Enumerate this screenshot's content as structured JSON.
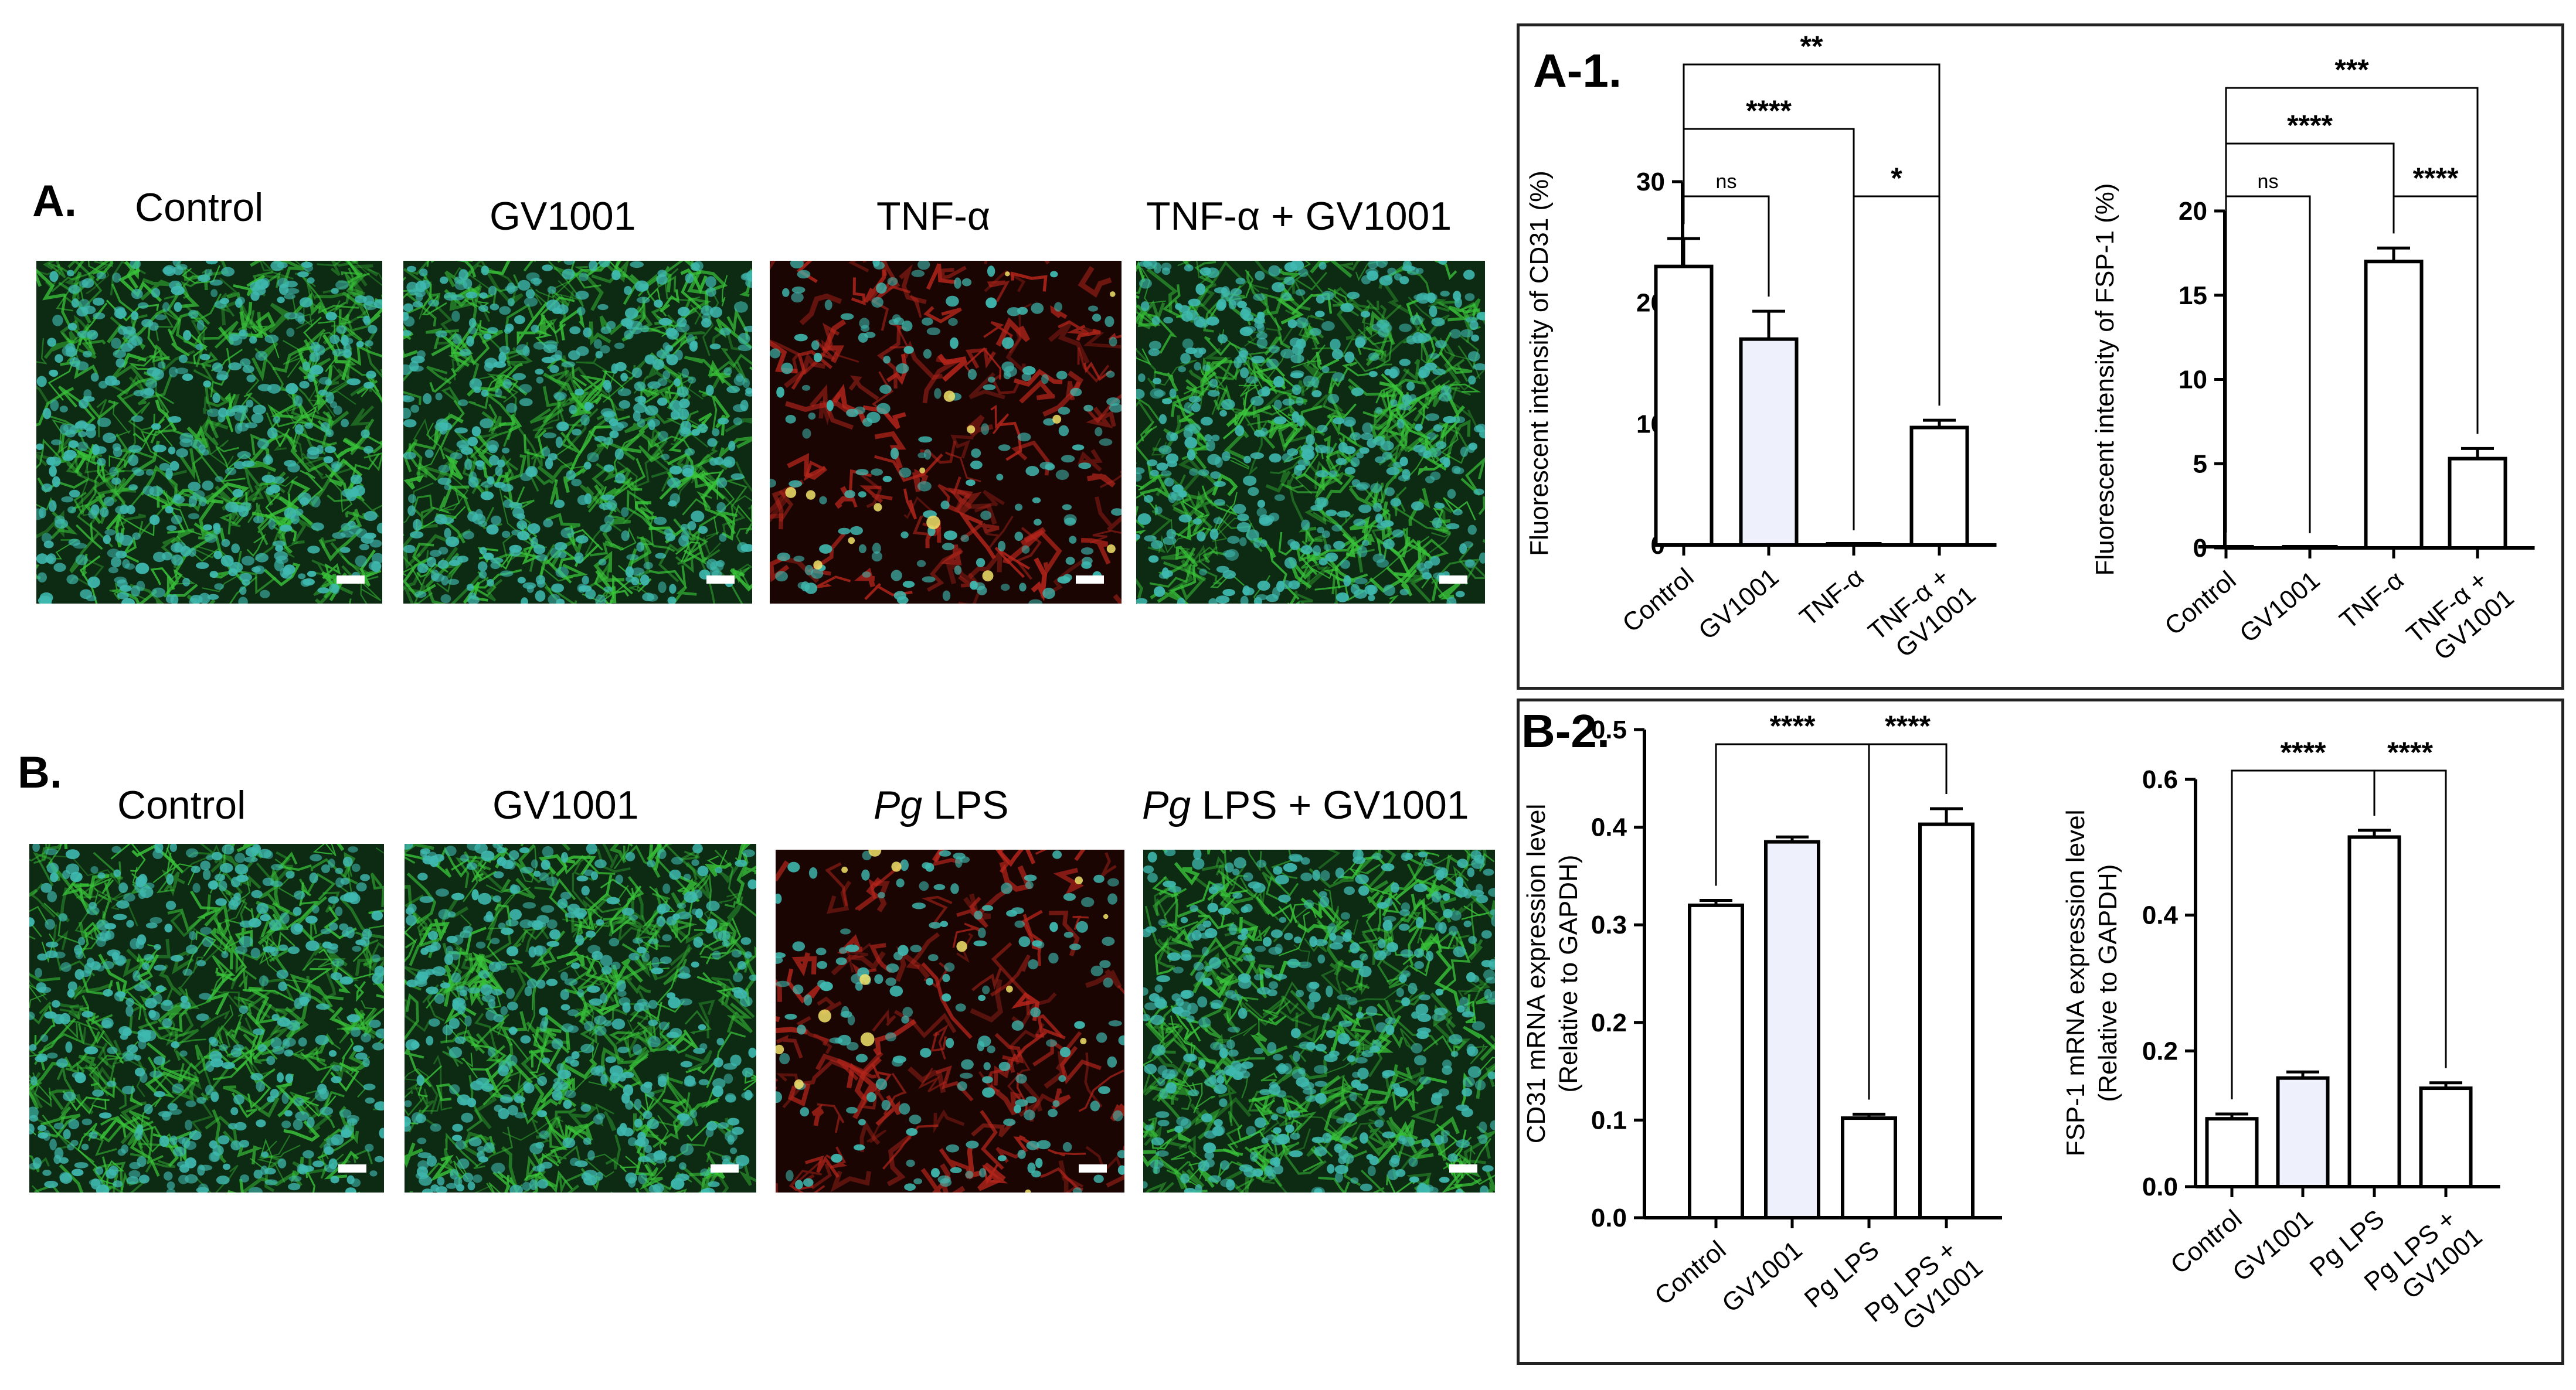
{
  "panels": {
    "A": {
      "letter": "A.",
      "labels": [
        "Control",
        "GV1001",
        "TNF-α",
        "TNF-α + GV1001"
      ],
      "image_descriptions": [
        "green-dense",
        "green-dense",
        "red-sparse",
        "green-dense"
      ]
    },
    "B": {
      "letter": "B.",
      "labels": [
        "Control",
        "GV1001",
        "Pg LPS",
        "Pg LPS + GV1001"
      ],
      "image_descriptions": [
        "green-dense",
        "green-dense",
        "red-sparse",
        "green-dense"
      ]
    }
  },
  "boxes": {
    "top_tag": "A-1.",
    "bottom_tag": "B-2."
  },
  "colors": {
    "cd31_green": "#39c43a",
    "nucleus_teal": "#3fb9b0",
    "fsp1_red": "#b8261c",
    "bar_fill_white": "#ffffff",
    "bar_fill_lavender": "#eef0fb"
  },
  "chart_data": [
    {
      "id": "cd31-fluor",
      "type": "bar",
      "categories": [
        "Control",
        "GV1001",
        "TNF-α",
        "TNF-α + GV1001"
      ],
      "values": [
        23.0,
        17.0,
        0,
        9.7
      ],
      "errors": [
        2.3,
        2.3,
        0,
        0.6
      ],
      "ylabel": "Fluorescent intensity of CD31 (%)",
      "ylim": [
        0,
        30
      ],
      "yticks": [
        0,
        10,
        20,
        30
      ],
      "fills": [
        "white",
        "lavender",
        "white",
        "white"
      ],
      "significance": [
        {
          "from": 0,
          "to": 3,
          "label": "**"
        },
        {
          "from": 0,
          "to": 2,
          "label": "****"
        },
        {
          "from": 0,
          "to": 1,
          "label": "ns"
        },
        {
          "from": 2,
          "to": 3,
          "label": "*"
        }
      ]
    },
    {
      "id": "fsp1-fluor",
      "type": "bar",
      "categories": [
        "Control",
        "GV1001",
        "TNF-α",
        "TNF-α + GV1001"
      ],
      "values": [
        0.05,
        0,
        17.0,
        5.3
      ],
      "errors": [
        0,
        0,
        0.8,
        0.6
      ],
      "ylabel": "Fluorescent intensity of FSP-1 (%)",
      "ylim": [
        0,
        20
      ],
      "yticks": [
        0,
        5,
        10,
        15,
        20
      ],
      "fills": [
        "white",
        "white",
        "white",
        "white"
      ],
      "significance": [
        {
          "from": 0,
          "to": 3,
          "label": "***"
        },
        {
          "from": 0,
          "to": 2,
          "label": "****"
        },
        {
          "from": 0,
          "to": 1,
          "label": "ns"
        },
        {
          "from": 2,
          "to": 3,
          "label": "****"
        }
      ]
    },
    {
      "id": "cd31-mrna",
      "type": "bar",
      "categories": [
        "Control",
        "GV1001",
        "Pg LPS",
        "Pg LPS + GV1001"
      ],
      "values": [
        0.32,
        0.385,
        0.102,
        0.403
      ],
      "errors": [
        0.005,
        0.005,
        0.004,
        0.016
      ],
      "ylabel": "CD31 mRNA expression level",
      "ylabel2": "(Relative to GAPDH)",
      "ylim": [
        0,
        0.5
      ],
      "yticks": [
        "0.0",
        "0.1",
        "0.2",
        "0.3",
        "0.4",
        "0.5"
      ],
      "fills": [
        "white",
        "lavender",
        "white",
        "white"
      ],
      "significance": [
        {
          "from": 0,
          "to": 2,
          "label": "****"
        },
        {
          "from": 2,
          "to": 3,
          "label": "****"
        }
      ]
    },
    {
      "id": "fsp1-mrna",
      "type": "bar",
      "categories": [
        "Control",
        "GV1001",
        "Pg LPS",
        "Pg LPS + GV1001"
      ],
      "values": [
        0.1,
        0.16,
        0.515,
        0.145
      ],
      "errors": [
        0.007,
        0.009,
        0.01,
        0.008
      ],
      "ylabel": "FSP-1 mRNA expression level",
      "ylabel2": "(Relative to GAPDH)",
      "ylim": [
        0,
        0.6
      ],
      "yticks": [
        "0.0",
        "0.2",
        "0.4",
        "0.6"
      ],
      "fills": [
        "white",
        "lavender",
        "white",
        "white"
      ],
      "significance": [
        {
          "from": 0,
          "to": 2,
          "label": "****"
        },
        {
          "from": 2,
          "to": 3,
          "label": "****"
        }
      ]
    }
  ]
}
